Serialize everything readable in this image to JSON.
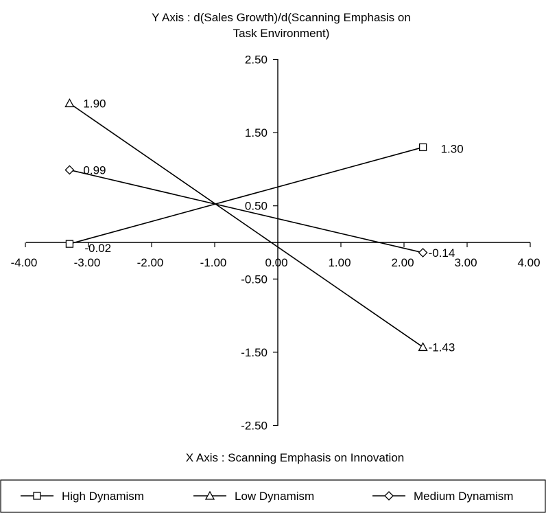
{
  "chart_data": {
    "type": "line",
    "title": "",
    "ylabel": "Y Axis : d(Sales Growth)/d(Scanning Emphasis on Task Environment)",
    "xlabel": "X Axis : Scanning Emphasis on Innovation",
    "xlim": [
      -4.0,
      4.0
    ],
    "ylim": [
      -2.5,
      2.5
    ],
    "x_ticks": [
      "-4.00",
      "-3.00",
      "-2.00",
      "-1.00",
      "0.00",
      "1.00",
      "2.00",
      "3.00",
      "4.00"
    ],
    "y_ticks": [
      "2.50",
      "1.50",
      "0.50",
      "-0.50",
      "-1.50",
      "-2.50"
    ],
    "grid": false,
    "legend_position": "bottom",
    "series": [
      {
        "name": "High Dynamism",
        "marker": "square",
        "color": "#000000",
        "points": [
          {
            "x": -3.3,
            "y": -0.02,
            "label": "-0.02"
          },
          {
            "x": 2.3,
            "y": 1.3,
            "label": "1.30"
          }
        ]
      },
      {
        "name": "Low Dynamism",
        "marker": "triangle",
        "color": "#000000",
        "points": [
          {
            "x": -3.3,
            "y": 1.9,
            "label": "1.90"
          },
          {
            "x": 2.3,
            "y": -1.43,
            "label": "-1.43"
          }
        ]
      },
      {
        "name": "Medium Dynamism",
        "marker": "diamond",
        "color": "#000000",
        "points": [
          {
            "x": -3.3,
            "y": 0.99,
            "label": "0.99"
          },
          {
            "x": 2.3,
            "y": -0.14,
            "label": "-0.14"
          }
        ]
      }
    ]
  }
}
